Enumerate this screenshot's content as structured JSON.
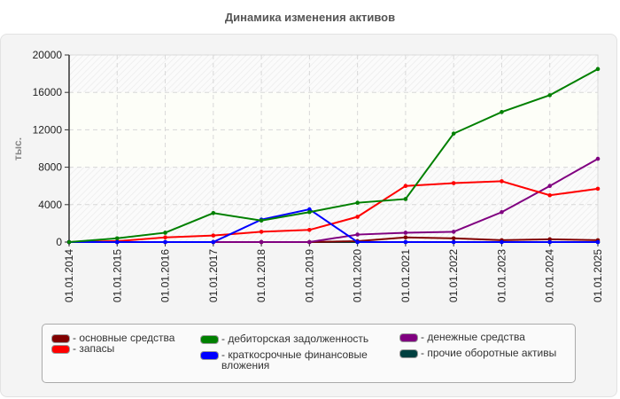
{
  "title": "Динамика изменения активов",
  "chart_data": {
    "type": "line",
    "title": "Динамика изменения активов",
    "xlabel": "",
    "ylabel": "тыс.",
    "ylim": [
      0,
      20000
    ],
    "yticks": [
      0,
      4000,
      8000,
      12000,
      16000,
      20000
    ],
    "grid": true,
    "legend_position": "bottom",
    "categories": [
      "01.01.2014",
      "01.01.2015",
      "01.01.2016",
      "01.01.2017",
      "01.01.2018",
      "01.01.2019",
      "01.01.2020",
      "01.01.2021",
      "01.01.2022",
      "01.01.2023",
      "01.01.2024",
      "01.01.2025"
    ],
    "series": [
      {
        "name": "основные средства",
        "color": "#800000",
        "values": [
          0,
          0,
          0,
          0,
          0,
          0,
          100,
          500,
          400,
          200,
          300,
          200
        ]
      },
      {
        "name": "запасы",
        "color": "#ff0000",
        "values": [
          0,
          100,
          500,
          700,
          1100,
          1300,
          2700,
          6000,
          6300,
          6500,
          5000,
          5700
        ]
      },
      {
        "name": "дебиторская задолженность",
        "color": "#008000",
        "values": [
          0,
          400,
          1000,
          3100,
          2300,
          3200,
          4200,
          4600,
          11600,
          13900,
          15700,
          18500
        ]
      },
      {
        "name": "краткосрочные финансовые вложения",
        "color": "#0000ff",
        "values": [
          0,
          0,
          0,
          0,
          2400,
          3500,
          0,
          0,
          0,
          0,
          0,
          0
        ]
      },
      {
        "name": "денежные средства",
        "color": "#800080",
        "values": [
          0,
          0,
          0,
          0,
          0,
          0,
          800,
          1000,
          1100,
          3200,
          6000,
          8900
        ]
      },
      {
        "name": "прочие оборотные активы",
        "color": "#004040",
        "values": [
          0,
          0,
          0,
          0,
          0,
          0,
          0,
          0,
          0,
          0,
          0,
          0
        ]
      }
    ]
  },
  "legend": [
    {
      "label": "- основные средства",
      "color": "#800000"
    },
    {
      "label": "- запасы",
      "color": "#ff0000"
    },
    {
      "label": "- дебиторская задолженность",
      "color": "#008000"
    },
    {
      "label": "- краткосрочные финансовые вложения",
      "color": "#0000ff"
    },
    {
      "label": "- денежные средства",
      "color": "#800080"
    },
    {
      "label": "- прочие оборотные активы",
      "color": "#004040"
    }
  ]
}
